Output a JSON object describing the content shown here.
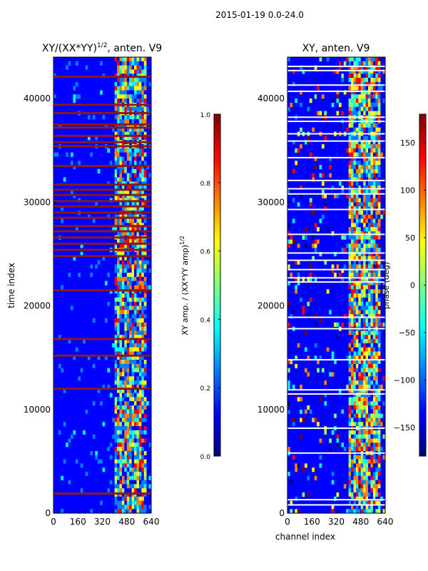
{
  "suptitle": "2015-01-19 0.0-24.0",
  "colors": {
    "jet": [
      "#00007f",
      "#0000ff",
      "#007fff",
      "#00ffff",
      "#7fff7f",
      "#ffff00",
      "#ff7f00",
      "#ff0000",
      "#7f0000"
    ],
    "stripe": "#8b1a1a",
    "white_band": "#ffffff"
  },
  "chart_data": [
    {
      "type": "heatmap",
      "title": "XY/(XX*YY)",
      "title_superscript": "1/2",
      "title_suffix": ", anten. V9",
      "xlabel": "",
      "ylabel": "time index",
      "x_range": [
        0,
        640
      ],
      "y_range": [
        0,
        44000
      ],
      "xticks": [
        0,
        160,
        320,
        480,
        640
      ],
      "yticks": [
        0,
        10000,
        20000,
        30000,
        40000
      ],
      "active_channel_band": [
        400,
        600
      ],
      "saturated_time_rows": [
        1900,
        12000,
        15200,
        16800,
        21500,
        24800,
        25400,
        26000,
        26600,
        27200,
        27700,
        28500,
        29000,
        29600,
        30100,
        30700,
        31200,
        31700,
        33500,
        35400,
        35800,
        36400,
        37200,
        37500,
        38600,
        39400,
        42100
      ],
      "colorbar": {
        "label": "XY amp. / (XX*YY amp)",
        "label_superscript": "1/2",
        "range": [
          0.0,
          1.0
        ],
        "ticks": [
          "0.0",
          "0.2",
          "0.4",
          "0.6",
          "0.8",
          "1.0"
        ]
      }
    },
    {
      "type": "heatmap",
      "title": "XY, anten. V9",
      "xlabel": "channel index",
      "ylabel": "",
      "x_range": [
        0,
        640
      ],
      "y_range": [
        0,
        44000
      ],
      "xticks": [
        0,
        160,
        320,
        480,
        640
      ],
      "yticks": [
        0,
        10000,
        20000,
        30000,
        40000
      ],
      "active_channel_band": [
        400,
        600
      ],
      "blank_time_rows": [
        800,
        1300,
        5800,
        8200,
        11500,
        11900,
        14800,
        17800,
        18900,
        22300,
        22700,
        23500,
        24400,
        25100,
        26900,
        29300,
        30800,
        31300,
        32100,
        34300,
        35900,
        36600,
        37800,
        38200,
        40700,
        41300,
        42700,
        43100
      ],
      "colorbar": {
        "label": "phase (deg)",
        "range": [
          -180,
          180
        ],
        "ticks": [
          "−150",
          "−100",
          "−50",
          "0",
          "50",
          "100",
          "150"
        ]
      }
    }
  ]
}
